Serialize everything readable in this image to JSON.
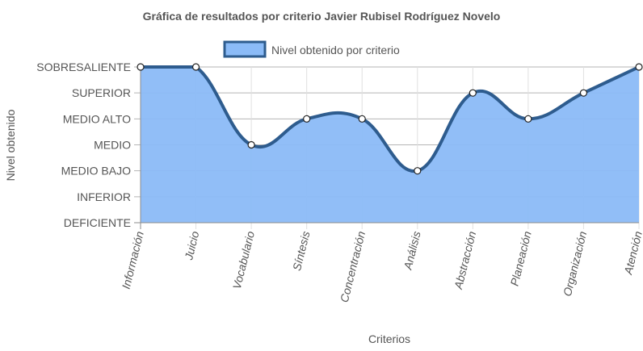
{
  "chart_data": {
    "type": "line",
    "title": "Gráfica de resultados por criterio Javier Rubisel Rodríguez Novelo",
    "xlabel": "Criterios",
    "ylabel": "Nivel obtenido",
    "categories": [
      "Información",
      "Juicio",
      "Vocabulario",
      "Síntesis",
      "Concentración",
      "Análisis",
      "Abstracción",
      "Planeación",
      "Organización",
      "Atención"
    ],
    "y_levels": [
      "DEFICIENTE",
      "INFERIOR",
      "MEDIO BAJO",
      "MEDIO",
      "MEDIO ALTO",
      "SUPERIOR",
      "SOBRESALIENTE"
    ],
    "ylim": [
      0,
      6
    ],
    "series": [
      {
        "name": "Nivel obtenido por criterio",
        "values": [
          6,
          6,
          3,
          4,
          4,
          2,
          5,
          4,
          5,
          6
        ],
        "fill_color": "#8bbbf7",
        "line_color": "#2e5c8e"
      }
    ],
    "legend_position": "top",
    "grid": true,
    "filled": true
  }
}
